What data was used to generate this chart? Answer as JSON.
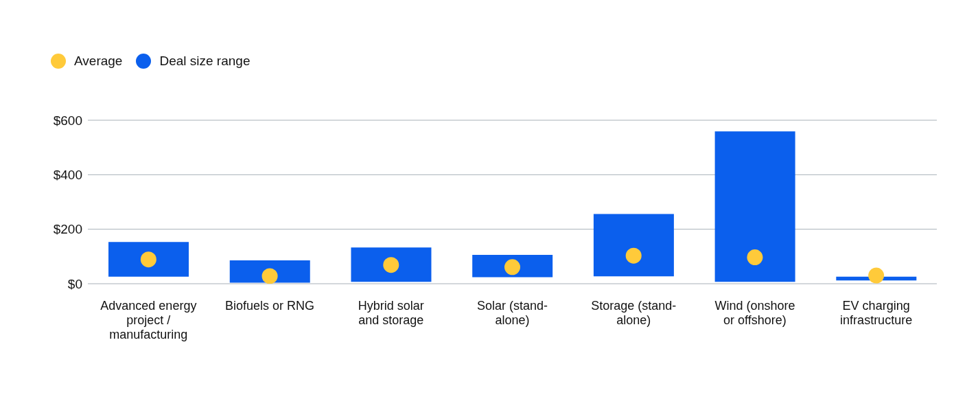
{
  "chart_data": {
    "type": "bar",
    "categories": [
      "Advanced energy project / manufacturing",
      "Biofuels or RNG",
      "Hybrid solar and storage",
      "Solar (stand-alone)",
      "Storage (stand-alone)",
      "Wind (onshore or offshore)",
      "EV charging infrastructure"
    ],
    "series": [
      {
        "name": "Average",
        "type": "scatter",
        "color": "#ffca3a",
        "x": [
          "Advanced energy project / manufacturing",
          "Biofuels or RNG",
          "Hybrid solar and storage",
          "Solar (stand-alone)",
          "Storage (stand-alone)",
          "Wind (onshore or offshore)",
          "EV charging infrastructure"
        ],
        "values": [
          89,
          28,
          69,
          61,
          103,
          97,
          30
        ]
      },
      {
        "name": "Deal size range",
        "color": "#0b5fed",
        "base": [
          26,
          4,
          7,
          24,
          27,
          7,
          12
        ],
        "values": [
          127,
          82,
          126,
          82,
          229,
          552,
          14
        ]
      }
    ],
    "ylim": [
      0,
      600
    ],
    "yticks": [
      {
        "value": 0,
        "label": "$0"
      },
      {
        "value": 200,
        "label": "$200"
      },
      {
        "value": 400,
        "label": "$400"
      },
      {
        "value": 600,
        "label": "$600"
      }
    ],
    "grid": "y",
    "legend": "top left",
    "marker": "circle"
  }
}
